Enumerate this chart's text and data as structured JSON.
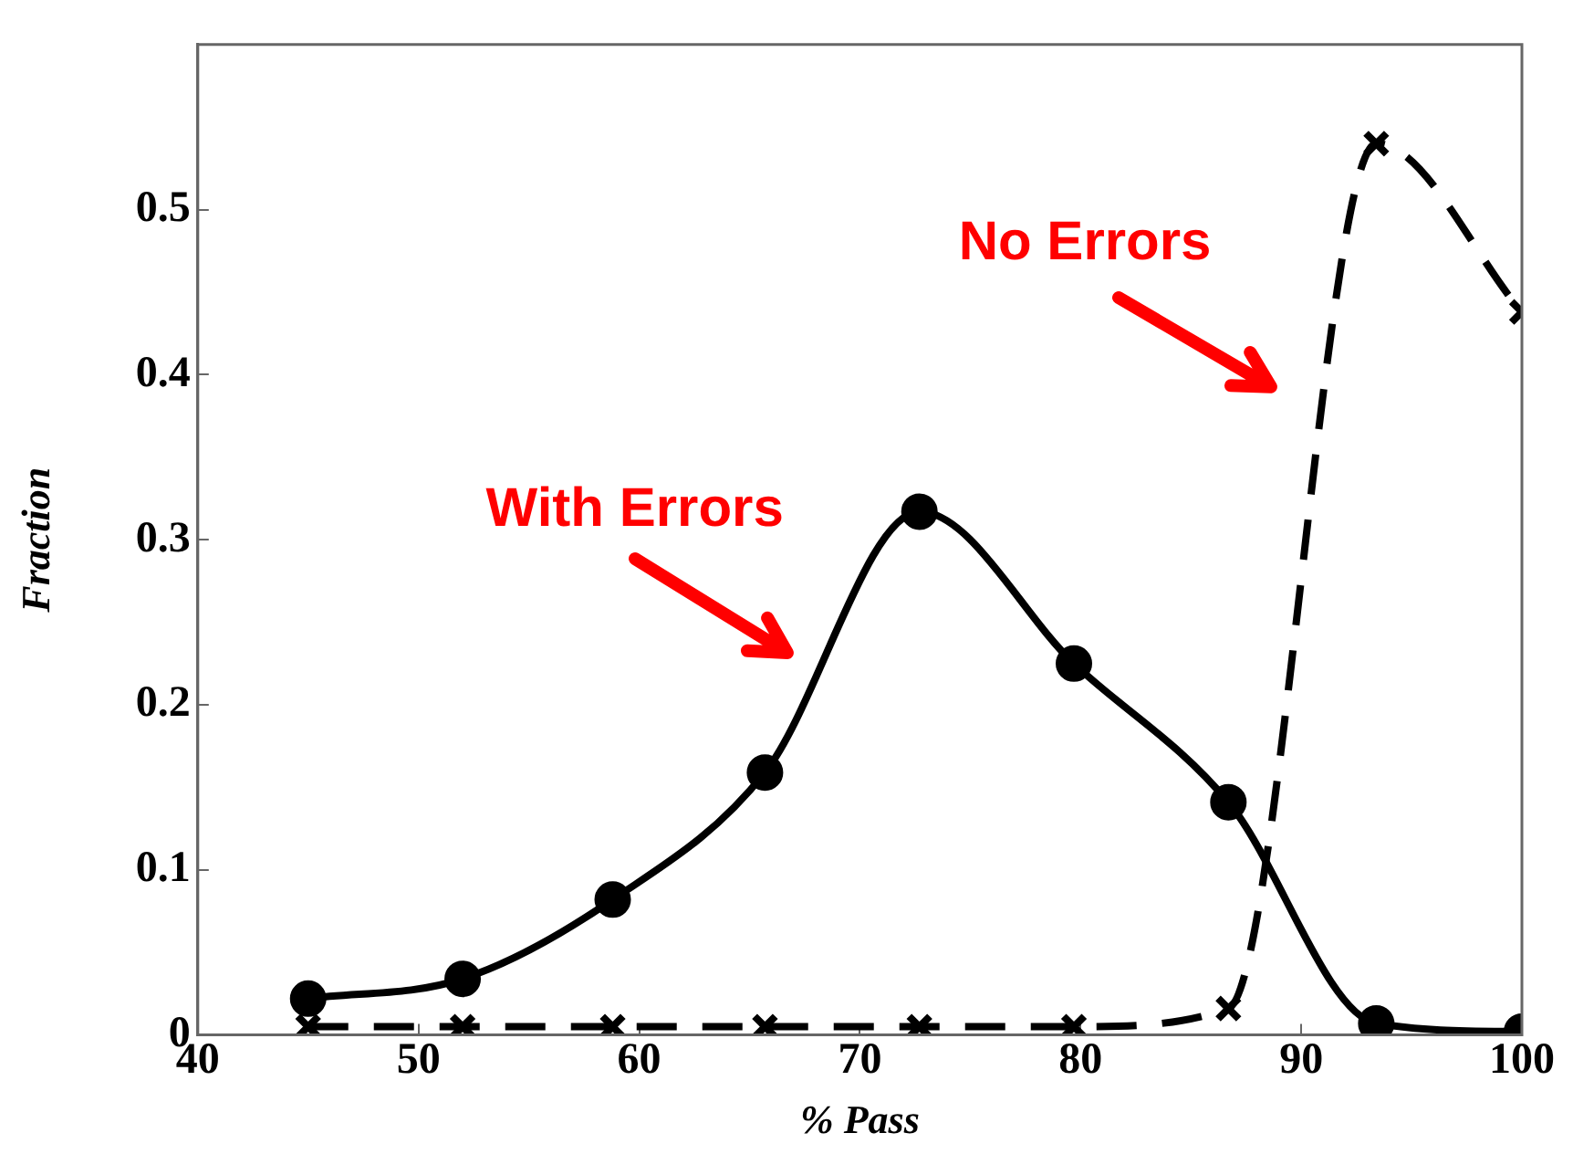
{
  "chart_data": {
    "type": "line",
    "xlabel": "% Pass",
    "ylabel": "Fraction",
    "xlim": [
      40,
      100
    ],
    "xticks": [
      40,
      50,
      60,
      70,
      80,
      90,
      100
    ],
    "ylim": [
      0,
      0.6
    ],
    "yticks": [
      0,
      0.1,
      0.2,
      0.3,
      0.4,
      0.5
    ],
    "grid": false,
    "legend": false,
    "series": [
      {
        "name": "With Errors",
        "color": "#000000",
        "marker": "circle",
        "line_style": "solid",
        "x": [
          45,
          52,
          58.8,
          65.7,
          72.7,
          79.7,
          86.7,
          93.4,
          100
        ],
        "values": [
          0.022,
          0.034,
          0.082,
          0.159,
          0.317,
          0.225,
          0.141,
          0.007,
          0.002
        ]
      },
      {
        "name": "No Errors",
        "color": "#000000",
        "marker": "cross",
        "line_style": "dashed",
        "x": [
          45,
          52,
          58.8,
          65.7,
          72.7,
          79.7,
          86.7,
          93.4,
          100
        ],
        "values": [
          0.005,
          0.005,
          0.005,
          0.005,
          0.005,
          0.005,
          0.016,
          0.54,
          0.438
        ]
      }
    ]
  }
}
